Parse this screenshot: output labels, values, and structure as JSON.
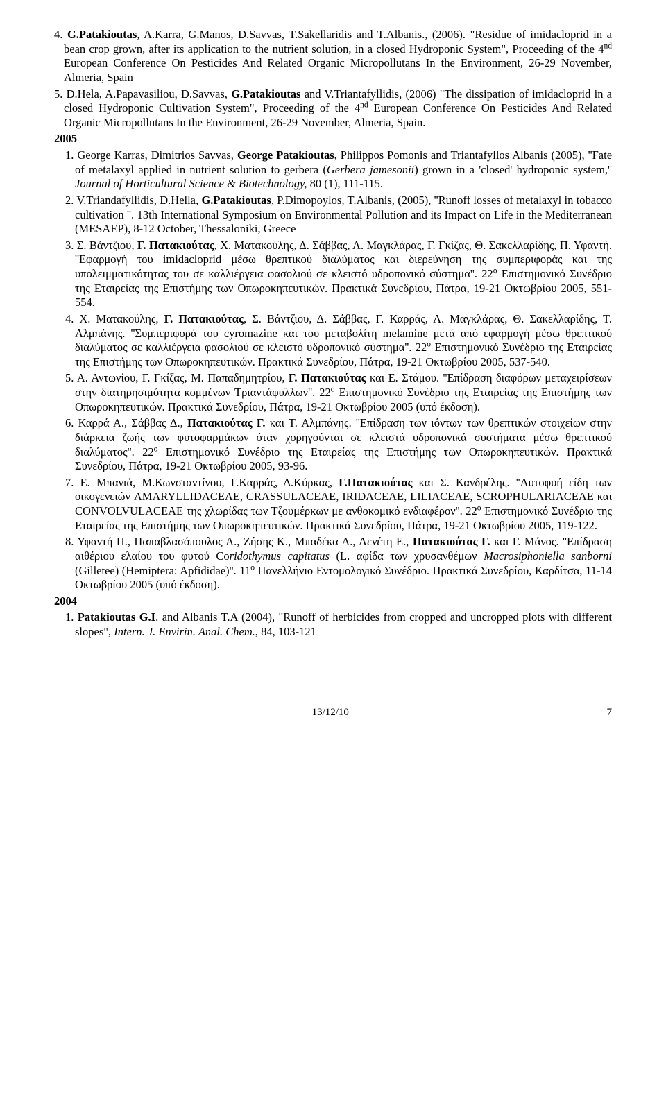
{
  "top": {
    "e4": {
      "prefix": "4. ",
      "authors_bold": "G.Patakioutas",
      "authors_rest": ", A.Karra, G.Manos, D.Savvas, T.Sakellaridis and T.Albanis., (2006). \"Residue of imidacloprid in a bean crop grown, after its application to the nutrient solution, in a closed Hydroponic System\", Proceeding of the 4",
      "sup": "nd",
      "rest": " European  Conference On Pesticides And Related Organic Micropollutans In the Environment, 26-29 November, Almeria, Spain"
    },
    "e5": {
      "prefix": "5. ",
      "authors_a": "D.Hela, A.Papavasiliou, D.Savvas, ",
      "bold": "G.Patakioutas",
      "authors_b": " and V.Triantafyllidis, (2006) \"The dissipation of imidacloprid in a closed Hydroponic Cultivation System\", Proceeding of the 4",
      "sup": "nd",
      "rest": " European  Conference On Pesticides And Related Organic Micropollutans In the Environment, 26-29 November, Almeria, Spain."
    }
  },
  "year2005": "2005",
  "y2005": {
    "e1": {
      "prefix": "1. ",
      "a": "George Karras, Dimitrios Savvas, ",
      "bold": "George Patakioutas",
      "b": ", Philippos Pomonis and Triantafyllos Albanis (2005), ''Fate of metalaxyl applied in nutrient solution to gerbera (",
      "it1": "Gerbera jamesonii",
      "c": ") grown in a 'closed' hydroponic system,'' ",
      "it2": "Journal of Horticultural Science & Biotechnology,",
      "d": " 80 (1), 111-115."
    },
    "e2": {
      "prefix": "2. ",
      "a": "V.Triandafyllidis, D.Hella, ",
      "bold": "G.Patakioutas",
      "b": ", P.Dimopoylos, T.Albanis, (2005), ''Runoff losses of metalaxyl in tobacco cultivation ''. 13th International Symposium on Environmental Pollution and its Impact on Life in the Mediterranean (MESAEP), 8-12 October, Thessaloniki, Greece"
    },
    "e3": {
      "prefix": "3. ",
      "a": "Σ. Βάντζιου, ",
      "bold1": "Γ. Πατακιούτας",
      "b": ", Χ. Ματακούλης, Δ. Σάββας, Λ. Μαγκλάρας, Γ. Γκίζας, Θ. Σακελλαρίδης, Π. Υφαντή. ''Εφαρμογή του imidacloprid μέσω θρεπτικού διαλύματος και διερεύνηση της συμπεριφοράς και της υπολειμματικότητας του σε καλλιέργεια φασολιού σε κλειστό υδροπονικό σύστημα''. 22",
      "sup": "ο",
      "c": " Επιστημονικό Συνέδριο της Εταιρείας της Επιστήμης των Οπωροκηπευτικών. Πρακτικά Συνεδρίου, Πάτρα, 19-21 Οκτωβρίου 2005, 551-554."
    },
    "e4": {
      "prefix": "4. ",
      "a": "Χ. Ματακούλης, ",
      "bold1": "Γ. Πατακιούτας",
      "b": ", Σ. Βάντζιου, Δ. Σάββας, Γ. Καρράς, Λ. Μαγκλάρας, Θ. Σακελλαρίδης, Τ. Αλμπάνης. ''Συμπεριφορά του cyromazine και του μεταβολίτη melamine μετά από εφαρμογή μέσω θρεπτικού διαλύματος  σε καλλιέργεια φασολιού σε κλειστό υδροπονικό σύστημα''. 22",
      "sup": "ο",
      "c": " Επιστημονικό Συνέδριο της Εταιρείας της Επιστήμης των Οπωροκηπευτικών. Πρακτικά Συνεδρίου, Πάτρα, 19-21 Οκτωβρίου  2005, 537-540."
    },
    "e5": {
      "prefix": "5. ",
      "a": "Α. Αντωνίου, Γ. Γκίζας, Μ. Παπαδημητρίου, ",
      "bold1": "Γ. Πατακιούτας",
      "b": " και Ε. Στάμου. ''Επίδραση διαφόρων  μεταχειρίσεων  στην  διατηρησιμότητα  κομμένων  Τριαντάφυλλων''.  22",
      "sup": "ο",
      "c": " Επιστημονικό Συνέδριο της Εταιρείας της Επιστήμης των Οπωροκηπευτικών. Πρακτικά Συνεδρίου, Πάτρα, 19-21 Οκτωβρίου 2005 (υπό έκδοση)."
    },
    "e6": {
      "prefix": "6. ",
      "a": "Καρρά Α., Σάββας Δ., ",
      "bold1": "Πατακιούτας Γ.",
      "b": " και Τ. Αλμπάνης. ''Επίδραση των ιόντων των θρεπτικών στοιχείων στην διάρκεια ζωής των φυτοφαρμάκων όταν χορηγούνται σε κλειστά υδροπονικά συστήματα μέσω θρεπτικού διαλύματος''. 22",
      "sup": "ο",
      "c": " Επιστημονικό Συνέδριο της Εταιρείας της Επιστήμης των Οπωροκηπευτικών. Πρακτικά Συνεδρίου, Πάτρα, 19-21 Οκτωβρίου 2005, 93-96."
    },
    "e7": {
      "prefix": "7. ",
      "a": "Ε. Μπανιά, Μ.Κωνσταντίνου, Γ.Καρράς, Δ.Κύρκας, ",
      "bold1": "Γ.Πατακιούτας",
      "b": " και Σ. Κανδρέλης. ''Αυτοφυή είδη των οικογενειών AMARYLLIDACEAE, CRASSULACEAE, IRIDACEAE, LILIACEAE, SCROPHULARIACEAE και CONVOLVULACEAE της χλωρίδας των Τζουμέρκων με ανθοκομικό ενδιαφέρον''. 22",
      "sup": "ο",
      "c": " Επιστημονικό Συνέδριο της Εταιρείας της Επιστήμης των Οπωροκηπευτικών. Πρακτικά Συνεδρίου, Πάτρα, 19-21 Οκτωβρίου 2005, 119-122."
    },
    "e8": {
      "prefix": "8. ",
      "a": "Υφαντή Π., Παπαβλασόπουλος Α., Ζήσης Κ., Μπαδέκα Α., Λενέτη Ε., ",
      "bold1": "Πατακιούτας Γ.",
      "b": " και Γ. Μάνος. ''Επίδραση αιθέριου ελαίου του φυτού Co",
      "it1": "ridothymus capitatus",
      "c": " (L.  αφίδα των χρυσανθέμων ",
      "it2": "Macrosiphoniella sanborni",
      "d": " (Gilletee) (Hemiptera: Apfididae)''. 11",
      "sup": "ο",
      "e": " Πανελλήνιο Εντομολογικό Συνέδριο. Πρακτικά Συνεδρίου, Καρδίτσα, 11-14 Οκτωβρίου 2005 (υπό έκδοση)."
    }
  },
  "year2004": "2004",
  "y2004": {
    "e1": {
      "prefix": "1.  ",
      "bold": "Patakioutas G.I",
      "a": ". and Albanis T.A (2004), \"Runoff of herbicides from cropped and uncropped plots with different slopes\", ",
      "it": "Intern. J. Envirin. Anal. Chem.",
      "b": ", 84, 103-121"
    }
  },
  "footer": {
    "date": "13/12/10",
    "page": "7"
  }
}
